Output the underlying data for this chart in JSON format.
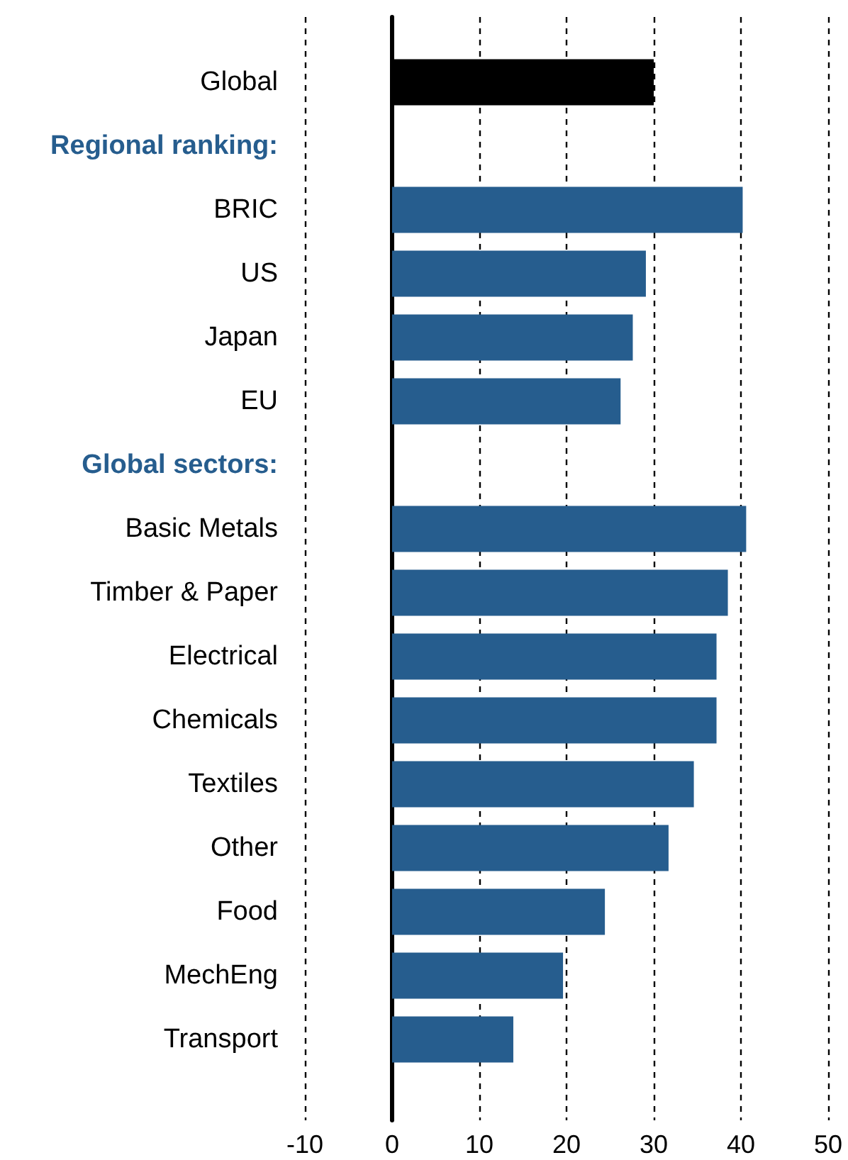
{
  "chart_data": {
    "type": "bar",
    "orientation": "horizontal",
    "categories": [
      "Global",
      null,
      "BRIC",
      "US",
      "Japan",
      "EU",
      null,
      "Basic Metals",
      "Timber & Paper",
      "Electrical",
      "Chemicals",
      "Textiles",
      "Other",
      "Food",
      "MechEng",
      "Transport"
    ],
    "values": [
      30,
      null,
      40.2,
      29.1,
      27.6,
      26.2,
      null,
      40.6,
      38.5,
      37.2,
      37.2,
      34.6,
      31.7,
      24.4,
      19.6,
      13.9
    ],
    "colors": [
      "#000000",
      null,
      "#265d8e",
      "#265d8e",
      "#265d8e",
      "#265d8e",
      null,
      "#265d8e",
      "#265d8e",
      "#265d8e",
      "#265d8e",
      "#265d8e",
      "#265d8e",
      "#265d8e",
      "#265d8e",
      "#265d8e"
    ],
    "annotations": [
      "Regional ranking:",
      "Global sectors:"
    ],
    "xlim": [
      -10,
      50
    ],
    "xticks": [
      -10,
      0,
      10,
      20,
      30,
      40,
      50
    ],
    "grid": "x"
  }
}
